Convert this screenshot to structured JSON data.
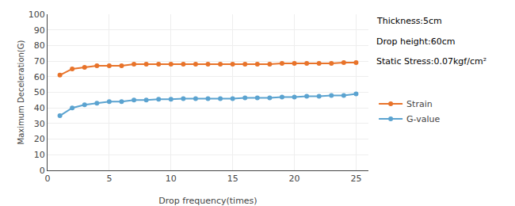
{
  "chart_data": {
    "type": "line",
    "xlabel": "Drop frequency(times)",
    "ylabel": "Maximum Deceleration(G)",
    "x": [
      1,
      2,
      3,
      4,
      5,
      6,
      7,
      8,
      9,
      10,
      11,
      12,
      13,
      14,
      15,
      16,
      17,
      18,
      19,
      20,
      21,
      22,
      23,
      24,
      25
    ],
    "series": [
      {
        "name": "Strain",
        "color": "#e8732a",
        "marker": "circle",
        "line_style": "solid",
        "values": [
          61,
          65,
          66,
          67,
          67,
          67,
          68,
          68,
          68,
          68,
          68,
          68,
          68,
          68,
          68,
          68,
          68,
          68,
          68.5,
          68.5,
          68.5,
          68.5,
          68.5,
          69,
          69
        ]
      },
      {
        "name": "G-value",
        "color": "#5ba3d0",
        "marker": "circle",
        "line_style": "solid",
        "values": [
          35,
          40,
          42,
          43,
          44,
          44,
          45,
          45,
          45.5,
          45.5,
          46,
          46,
          46,
          46,
          46,
          46.5,
          46.5,
          46.5,
          47,
          47,
          47.5,
          47.5,
          48,
          48,
          49
        ]
      }
    ],
    "xlim": [
      0,
      26
    ],
    "ylim": [
      0,
      100
    ],
    "xticks": [
      0,
      5,
      10,
      15,
      20,
      25
    ],
    "yticks": [
      0,
      10,
      20,
      30,
      40,
      50,
      60,
      70,
      80,
      90,
      100
    ],
    "annotations": [
      "Thickness:5cm",
      "Drop height:60cm",
      "Static Stress:0.07kgf/cm²"
    ],
    "grid": true,
    "legend": "right"
  }
}
